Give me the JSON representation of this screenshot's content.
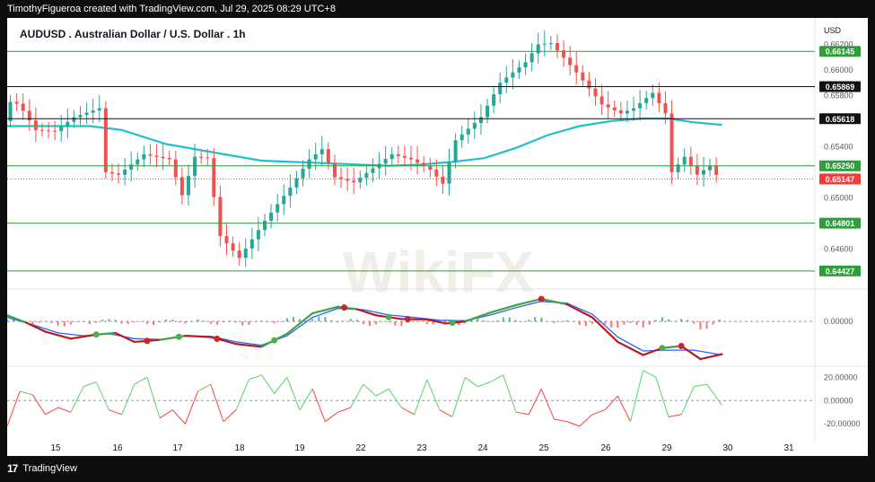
{
  "header": {
    "credit": "TimothyFigueroa created with TradingView.com, Jul 29, 2025 08:29 UTC+8"
  },
  "footer": {
    "brand": "TradingView",
    "logo_icon": "tradingview-logo-icon"
  },
  "watermark": {
    "text": "WikiFX"
  },
  "chart_data": {
    "type": "candlestick",
    "title": "AUDUSD . Australian Dollar / U.S. Dollar . 1h",
    "currency": "USD",
    "x_ticks": [
      "15",
      "16",
      "17",
      "18",
      "19",
      "22",
      "23",
      "24",
      "25",
      "26",
      "29",
      "30",
      "31"
    ],
    "price_ticks": [
      "0.66200",
      "0.66000",
      "0.65800",
      "0.65400",
      "0.65000",
      "0.64600"
    ],
    "ylim": [
      0.643,
      0.6628
    ],
    "horizontal_levels": [
      {
        "label": "0.66145",
        "value": 0.66145,
        "color": "#2e9e3a"
      },
      {
        "label": "0.65869",
        "value": 0.65869,
        "color": "#111111"
      },
      {
        "label": "0.65618",
        "value": 0.65618,
        "color": "#111111"
      },
      {
        "label": "0.65250",
        "value": 0.6525,
        "color": "#2e9e3a"
      },
      {
        "label": "0.64801",
        "value": 0.64801,
        "color": "#2e9e3a"
      },
      {
        "label": "0.64427",
        "value": 0.64427,
        "color": "#2e9e3a"
      }
    ],
    "last_price": {
      "label": "0.65147",
      "value": 0.65147,
      "color": "#ef3b3b"
    },
    "price_path": [
      [
        0,
        0.656
      ],
      [
        1.2,
        0.6578
      ],
      [
        3,
        0.6568
      ],
      [
        5,
        0.6553
      ],
      [
        8,
        0.6552
      ],
      [
        11,
        0.6563
      ],
      [
        15,
        0.657
      ],
      [
        16,
        0.652
      ],
      [
        18,
        0.6518
      ],
      [
        22,
        0.6534
      ],
      [
        26,
        0.653
      ],
      [
        28,
        0.6502
      ],
      [
        30,
        0.6532
      ],
      [
        32,
        0.6531
      ],
      [
        34,
        0.647
      ],
      [
        37,
        0.6453
      ],
      [
        41,
        0.6482
      ],
      [
        45,
        0.6508
      ],
      [
        48,
        0.653
      ],
      [
        50,
        0.6538
      ],
      [
        52,
        0.6516
      ],
      [
        55,
        0.6512
      ],
      [
        58,
        0.6523
      ],
      [
        61,
        0.6534
      ],
      [
        64,
        0.653
      ],
      [
        67,
        0.6522
      ],
      [
        69,
        0.6511
      ],
      [
        71,
        0.6545
      ],
      [
        75,
        0.6563
      ],
      [
        78,
        0.659
      ],
      [
        82,
        0.6606
      ],
      [
        84,
        0.662
      ],
      [
        86,
        0.6621
      ],
      [
        90,
        0.6598
      ],
      [
        94,
        0.6573
      ],
      [
        97,
        0.6566
      ],
      [
        99,
        0.657
      ],
      [
        102,
        0.6582
      ],
      [
        104,
        0.6566
      ],
      [
        105,
        0.652
      ],
      [
        107,
        0.6532
      ],
      [
        109,
        0.6518
      ],
      [
        111,
        0.6525
      ],
      [
        112.4,
        0.6515
      ]
    ],
    "ma_path": [
      [
        0,
        0.6556
      ],
      [
        7,
        0.6556
      ],
      [
        13,
        0.6556
      ],
      [
        18,
        0.6553
      ],
      [
        25,
        0.6542
      ],
      [
        33,
        0.6535
      ],
      [
        40,
        0.6529
      ],
      [
        50,
        0.6527
      ],
      [
        60,
        0.6525
      ],
      [
        65,
        0.6526
      ],
      [
        70,
        0.6528
      ],
      [
        75,
        0.6531
      ],
      [
        80,
        0.6539
      ],
      [
        85,
        0.6549
      ],
      [
        90,
        0.6556
      ],
      [
        95,
        0.656
      ],
      [
        100,
        0.6562
      ],
      [
        104,
        0.6562
      ],
      [
        108,
        0.6559
      ],
      [
        112.4,
        0.6557
      ]
    ],
    "macd": {
      "ticks": [
        "0.00000"
      ],
      "ylim": [
        -1.05,
        0.75
      ],
      "macd_path": [
        [
          0,
          0.15
        ],
        [
          3,
          -0.03
        ],
        [
          6,
          -0.25
        ],
        [
          10,
          -0.42
        ],
        [
          14,
          -0.32
        ],
        [
          17,
          -0.28
        ],
        [
          20,
          -0.5
        ],
        [
          24,
          -0.45
        ],
        [
          28,
          -0.35
        ],
        [
          32,
          -0.38
        ],
        [
          36,
          -0.55
        ],
        [
          40,
          -0.62
        ],
        [
          44,
          -0.3
        ],
        [
          48,
          0.2
        ],
        [
          52,
          0.36
        ],
        [
          55,
          0.3
        ],
        [
          58,
          0.15
        ],
        [
          62,
          0.06
        ],
        [
          66,
          0.05
        ],
        [
          69,
          -0.05
        ],
        [
          72,
          0.0
        ],
        [
          76,
          0.22
        ],
        [
          80,
          0.4
        ],
        [
          84,
          0.55
        ],
        [
          88,
          0.42
        ],
        [
          92,
          0.1
        ],
        [
          96,
          -0.5
        ],
        [
          100,
          -0.82
        ],
        [
          103,
          -0.65
        ],
        [
          106,
          -0.6
        ],
        [
          109,
          -0.92
        ],
        [
          112.4,
          -0.8
        ]
      ],
      "signal_path": [
        [
          0,
          0.1
        ],
        [
          4,
          -0.08
        ],
        [
          8,
          -0.28
        ],
        [
          12,
          -0.35
        ],
        [
          16,
          -0.3
        ],
        [
          20,
          -0.42
        ],
        [
          24,
          -0.44
        ],
        [
          28,
          -0.36
        ],
        [
          32,
          -0.36
        ],
        [
          36,
          -0.5
        ],
        [
          40,
          -0.58
        ],
        [
          44,
          -0.35
        ],
        [
          48,
          0.1
        ],
        [
          52,
          0.32
        ],
        [
          56,
          0.29
        ],
        [
          60,
          0.16
        ],
        [
          64,
          0.1
        ],
        [
          68,
          0.03
        ],
        [
          72,
          0.02
        ],
        [
          76,
          0.16
        ],
        [
          80,
          0.34
        ],
        [
          84,
          0.49
        ],
        [
          88,
          0.45
        ],
        [
          92,
          0.18
        ],
        [
          96,
          -0.38
        ],
        [
          100,
          -0.72
        ],
        [
          104,
          -0.7
        ],
        [
          108,
          -0.7
        ],
        [
          112.4,
          -0.82
        ]
      ],
      "cross_markers": [
        {
          "x": 14,
          "color": "#4caf50"
        },
        {
          "x": 22,
          "color": "#c62828"
        },
        {
          "x": 27,
          "color": "#4caf50"
        },
        {
          "x": 33,
          "color": "#c62828"
        },
        {
          "x": 42,
          "color": "#4caf50"
        },
        {
          "x": 53,
          "color": "#c62828"
        },
        {
          "x": 60,
          "color": "#4caf50"
        },
        {
          "x": 63,
          "color": "#c62828"
        },
        {
          "x": 70,
          "color": "#4caf50"
        },
        {
          "x": 84,
          "color": "#c62828"
        },
        {
          "x": 103,
          "color": "#4caf50"
        },
        {
          "x": 106,
          "color": "#c62828"
        }
      ]
    },
    "oscillator": {
      "ticks": [
        "20.00000",
        "0.00000",
        "-20.00000"
      ],
      "ylim": [
        -26,
        28
      ],
      "path": [
        [
          0,
          -22
        ],
        [
          2,
          8
        ],
        [
          4,
          5
        ],
        [
          6,
          -12
        ],
        [
          8,
          -6
        ],
        [
          10,
          -10
        ],
        [
          12,
          12
        ],
        [
          14,
          16
        ],
        [
          16,
          -8
        ],
        [
          18,
          -12
        ],
        [
          20,
          14
        ],
        [
          22,
          20
        ],
        [
          24,
          -15
        ],
        [
          26,
          -8
        ],
        [
          28,
          -20
        ],
        [
          30,
          8
        ],
        [
          32,
          14
        ],
        [
          34,
          -18
        ],
        [
          36,
          -8
        ],
        [
          38,
          18
        ],
        [
          40,
          22
        ],
        [
          42,
          6
        ],
        [
          44,
          20
        ],
        [
          46,
          -8
        ],
        [
          48,
          10
        ],
        [
          50,
          -18
        ],
        [
          52,
          -10
        ],
        [
          54,
          -6
        ],
        [
          56,
          14
        ],
        [
          58,
          4
        ],
        [
          60,
          10
        ],
        [
          62,
          -6
        ],
        [
          64,
          -12
        ],
        [
          66,
          18
        ],
        [
          68,
          -8
        ],
        [
          70,
          -14
        ],
        [
          72,
          20
        ],
        [
          74,
          12
        ],
        [
          76,
          16
        ],
        [
          78,
          22
        ],
        [
          80,
          -10
        ],
        [
          82,
          -12
        ],
        [
          84,
          10
        ],
        [
          86,
          -16
        ],
        [
          88,
          -18
        ],
        [
          90,
          -22
        ],
        [
          92,
          -12
        ],
        [
          94,
          -8
        ],
        [
          96,
          4
        ],
        [
          98,
          -18
        ],
        [
          100,
          26
        ],
        [
          102,
          20
        ],
        [
          104,
          -14
        ],
        [
          106,
          -12
        ],
        [
          108,
          12
        ],
        [
          110,
          14
        ],
        [
          112.4,
          -4
        ]
      ]
    }
  }
}
